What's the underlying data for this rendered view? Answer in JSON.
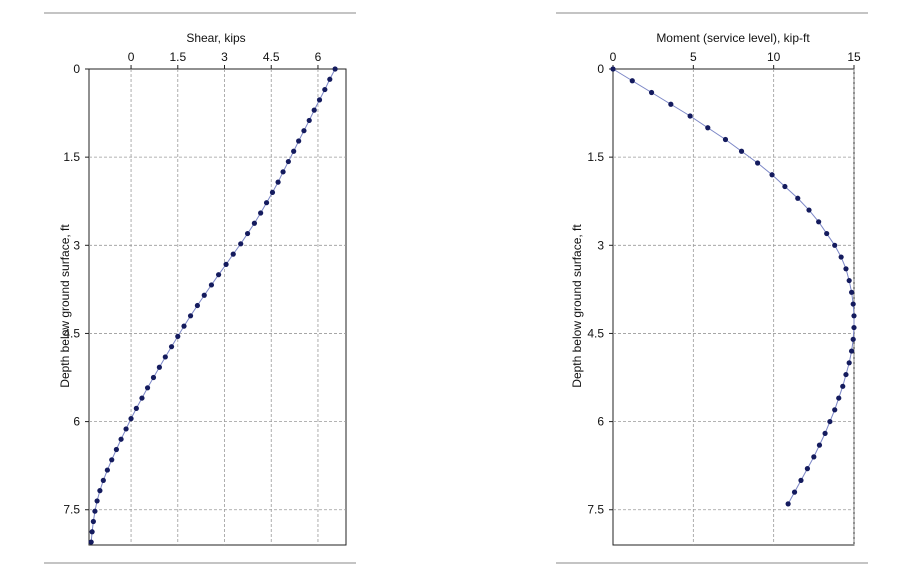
{
  "colors": {
    "marker": "#141b5e",
    "line": "#7b86c6",
    "grid": "#9a9a9a",
    "frame": "#222222"
  },
  "chart_data": [
    {
      "type": "line",
      "title": "",
      "xlabel": "Shear, kips",
      "ylabel": "Depth below ground surface, ft",
      "x_axis_position": "top",
      "y_axis_inverted": true,
      "grid": true,
      "xlim": [
        -1.35,
        6.9
      ],
      "ylim": [
        0,
        8.1
      ],
      "x_ticks": [
        {
          "value": 0,
          "label": "0"
        },
        {
          "value": 1.5,
          "label": "1.5"
        },
        {
          "value": 3,
          "label": "3"
        },
        {
          "value": 4.5,
          "label": "4.5"
        },
        {
          "value": 6,
          "label": "6"
        }
      ],
      "y_ticks": [
        {
          "value": 0,
          "label": "0"
        },
        {
          "value": 1.5,
          "label": "1.5"
        },
        {
          "value": 3,
          "label": "3"
        },
        {
          "value": 4.5,
          "label": "4.5"
        },
        {
          "value": 6,
          "label": "6"
        },
        {
          "value": 7.5,
          "label": "7.5"
        }
      ],
      "series": [
        {
          "x": [
            6.55,
            6.38,
            6.22,
            6.05,
            5.88,
            5.72,
            5.55,
            5.38,
            5.22,
            5.05,
            4.88,
            4.72,
            4.54,
            4.35,
            4.16,
            3.96,
            3.74,
            3.52,
            3.28,
            3.05,
            2.81,
            2.58,
            2.35,
            2.13,
            1.91,
            1.7,
            1.5,
            1.3,
            1.1,
            0.91,
            0.72,
            0.53,
            0.35,
            0.17,
            0.0,
            -0.16,
            -0.32,
            -0.47,
            -0.62,
            -0.76,
            -0.89,
            -1.0,
            -1.09,
            -1.16,
            -1.21,
            -1.25,
            -1.28
          ],
          "y": [
            0,
            0.175,
            0.35,
            0.525,
            0.7,
            0.875,
            1.05,
            1.225,
            1.4,
            1.575,
            1.75,
            1.925,
            2.1,
            2.275,
            2.45,
            2.625,
            2.8,
            2.975,
            3.15,
            3.325,
            3.5,
            3.675,
            3.85,
            4.025,
            4.2,
            4.375,
            4.55,
            4.725,
            4.9,
            5.075,
            5.25,
            5.425,
            5.6,
            5.775,
            5.95,
            6.125,
            6.3,
            6.475,
            6.65,
            6.825,
            7.0,
            7.175,
            7.35,
            7.525,
            7.7,
            7.875,
            8.05
          ]
        }
      ]
    },
    {
      "type": "line",
      "title": "",
      "xlabel": "Moment (service level), kip-ft",
      "ylabel": "Depth below ground surface, ft",
      "x_axis_position": "top",
      "y_axis_inverted": true,
      "grid": true,
      "xlim": [
        0,
        15
      ],
      "ylim": [
        0,
        8.1
      ],
      "x_ticks": [
        {
          "value": 0,
          "label": "0"
        },
        {
          "value": 5,
          "label": "5"
        },
        {
          "value": 10,
          "label": "10"
        },
        {
          "value": 15,
          "label": "15"
        }
      ],
      "y_ticks": [
        {
          "value": 0,
          "label": "0"
        },
        {
          "value": 1.5,
          "label": "1.5"
        },
        {
          "value": 3,
          "label": "3"
        },
        {
          "value": 4.5,
          "label": "4.5"
        },
        {
          "value": 6,
          "label": "6"
        },
        {
          "value": 7.5,
          "label": "7.5"
        }
      ],
      "series": [
        {
          "x": [
            0.0,
            1.2,
            2.4,
            3.6,
            4.8,
            5.9,
            7.0,
            8.0,
            9.0,
            9.9,
            10.7,
            11.5,
            12.2,
            12.8,
            13.3,
            13.8,
            14.2,
            14.5,
            14.7,
            14.85,
            14.95,
            15.0,
            15.0,
            14.95,
            14.85,
            14.7,
            14.5,
            14.3,
            14.05,
            13.8,
            13.5,
            13.2,
            12.85,
            12.5,
            12.1,
            11.7,
            11.3,
            10.9
          ],
          "y": [
            0,
            0.2,
            0.4,
            0.6,
            0.8,
            1.0,
            1.2,
            1.4,
            1.6,
            1.8,
            2.0,
            2.2,
            2.4,
            2.6,
            2.8,
            3.0,
            3.2,
            3.4,
            3.6,
            3.8,
            4.0,
            4.2,
            4.4,
            4.6,
            4.8,
            5.0,
            5.2,
            5.4,
            5.6,
            5.8,
            6.0,
            6.2,
            6.4,
            6.6,
            6.8,
            7.0,
            7.2,
            7.4
          ]
        }
      ]
    }
  ]
}
